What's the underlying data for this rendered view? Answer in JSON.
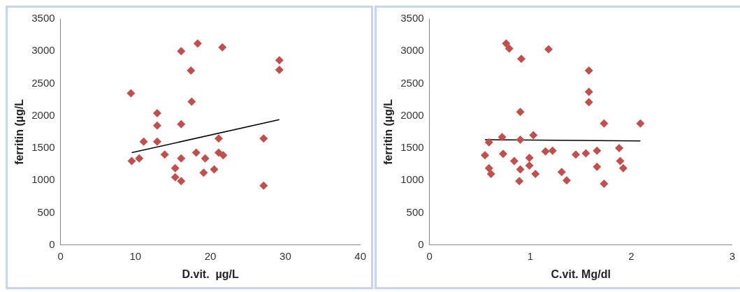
{
  "chart_data": [
    {
      "type": "scatter",
      "xlabel": "D.vit.  µg/L",
      "ylabel": "ferritin (µg/L",
      "xlim": [
        0,
        40
      ],
      "xticks": [
        0,
        10,
        20,
        30,
        40
      ],
      "ylim": [
        0,
        3500
      ],
      "yticks": [
        0,
        500,
        1000,
        1500,
        2000,
        2500,
        3000,
        3500
      ],
      "grid": false,
      "legend": false,
      "marker": "diamond",
      "series": [
        {
          "color": "#c0504d",
          "x": [
            9.4,
            9.5,
            10.5,
            11.1,
            12.9,
            12.9,
            12.9,
            13.9,
            15.3,
            15.3,
            16.1,
            16.1,
            16.1,
            16.1,
            17.4,
            17.5,
            18.3,
            18.1,
            19.1,
            19.3,
            20.5,
            21.1,
            21.1,
            21.7,
            21.6,
            27.1,
            27.1,
            29.2,
            29.2
          ],
          "values": [
            2350,
            1300,
            1340,
            1600,
            2040,
            1850,
            1600,
            1400,
            1190,
            1050,
            990,
            1340,
            1870,
            3000,
            2700,
            2220,
            3120,
            1430,
            1120,
            1340,
            1170,
            1650,
            1430,
            1390,
            3060,
            1650,
            920,
            2860,
            2710
          ]
        },
        {
          "type": "line",
          "color": "#000000",
          "marker": "none",
          "x": [
            9.5,
            29.2
          ],
          "values": [
            1430,
            1940
          ]
        }
      ]
    },
    {
      "type": "scatter",
      "xlabel": "C.vit. Mg/dl",
      "ylabel": "ferritin (µg/L",
      "xlim": [
        0,
        3
      ],
      "xticks": [
        0,
        1,
        2,
        3
      ],
      "ylim": [
        0,
        3500
      ],
      "yticks": [
        0,
        500,
        1000,
        1500,
        2000,
        2500,
        3000,
        3500
      ],
      "grid": false,
      "legend": false,
      "marker": "diamond",
      "series": [
        {
          "color": "#c0504d",
          "x": [
            0.76,
            0.79,
            0.91,
            1.18,
            1.58,
            1.58,
            1.58,
            0.9,
            1.73,
            2.09,
            0.59,
            0.72,
            0.9,
            1.03,
            0.55,
            0.59,
            0.61,
            0.73,
            0.84,
            0.9,
            0.89,
            0.99,
            0.99,
            1.05,
            1.15,
            1.22,
            1.31,
            1.36,
            1.45,
            1.55,
            1.66,
            1.66,
            1.73,
            1.88,
            1.89,
            1.92
          ],
          "values": [
            3120,
            3040,
            2880,
            3030,
            2700,
            2370,
            2210,
            2060,
            1880,
            1880,
            1590,
            1670,
            1630,
            1700,
            1390,
            1190,
            1100,
            1410,
            1300,
            1170,
            990,
            1350,
            1230,
            1100,
            1450,
            1460,
            1130,
            1000,
            1400,
            1420,
            1460,
            1210,
            950,
            1500,
            1300,
            1190
          ]
        },
        {
          "type": "line",
          "color": "#000000",
          "marker": "none",
          "x": [
            0.55,
            2.09
          ],
          "values": [
            1630,
            1610
          ]
        }
      ]
    }
  ]
}
